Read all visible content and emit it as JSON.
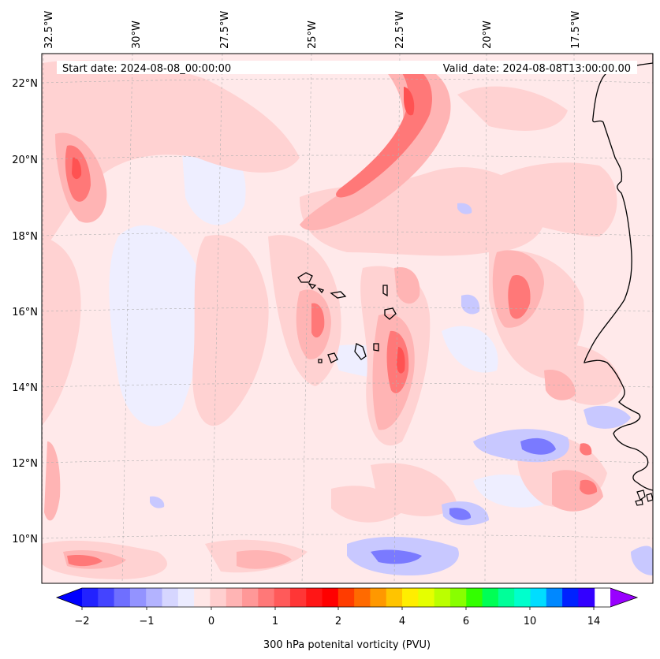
{
  "header": {
    "start_date": "Start date: 2024-08-08_00:00:00",
    "valid_date": "Valid_date: 2024-08-08T13:00:00.00"
  },
  "map": {
    "lon_labels": [
      "32.5°W",
      "30°W",
      "27.5°W",
      "25°W",
      "22.5°W",
      "20°W",
      "17.5°W"
    ],
    "lat_labels": [
      "22°N",
      "20°N",
      "18°N",
      "16°N",
      "14°N",
      "12°N",
      "10°N"
    ]
  },
  "colorbar": {
    "title": "300 hPa potenital vorticity (PVU)",
    "tick_labels": [
      "−2",
      "−1",
      "0",
      "1",
      "2",
      "4",
      "6",
      "10",
      "14"
    ],
    "colors": [
      "#0000ff",
      "#2222ff",
      "#4444ff",
      "#6f6fff",
      "#9393ff",
      "#b3b3ff",
      "#d6d6ff",
      "#ececff",
      "#ffe7e7",
      "#ffcfcf",
      "#ffb4b4",
      "#ff9898",
      "#ff7878",
      "#ff5a5a",
      "#ff3636",
      "#ff1616",
      "#ff0000",
      "#ff3c00",
      "#ff6a00",
      "#ff9800",
      "#ffc400",
      "#ffee00",
      "#e5ff00",
      "#bbff00",
      "#88ff00",
      "#33ff00",
      "#00ff55",
      "#00ff99",
      "#00ffcc",
      "#00ddff",
      "#0088ff",
      "#0022ff",
      "#3300ff",
      "#9900ff"
    ]
  },
  "colors": {
    "background_field": "#ffe9ea",
    "light_pink": "#ffd2d2",
    "mid_pink": "#ffb4b4",
    "red": "#ff7a7a",
    "deep_red": "#ff4f4f",
    "light_blue": "#ececff",
    "blue": "#c8c8ff",
    "deep_blue": "#7474ff"
  }
}
